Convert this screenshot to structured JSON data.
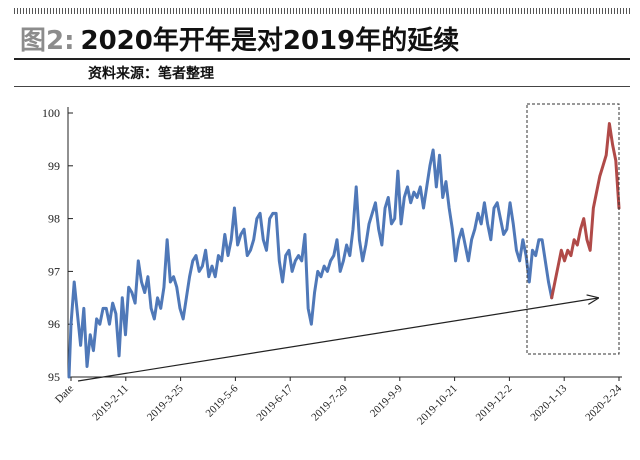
{
  "header": {
    "fig_label": "图2:",
    "title": "2020年开年是对2019年的延续",
    "source": "资料来源：笔者整理"
  },
  "chart_data": {
    "type": "line",
    "title": "",
    "xlabel": "",
    "ylabel": "",
    "ylim": [
      95,
      100
    ],
    "y_ticks": [
      95,
      96,
      97,
      98,
      99,
      100
    ],
    "x_tick_labels": [
      "Date",
      "2019-2-11",
      "2019-3-25",
      "2019-5-6",
      "2019-6-17",
      "2019-7-29",
      "2019-9-9",
      "2019-10-21",
      "2019-12-2",
      "2020-1-13",
      "2020-2-24"
    ],
    "grid": false,
    "colors": {
      "series_2019": "#4f78b8",
      "series_2020": "#b04a48",
      "axis": "#222222"
    },
    "series": [
      {
        "values": [
          96.0,
          96.8,
          96.2,
          95.6,
          96.3,
          95.2,
          95.8,
          95.5,
          96.1,
          96.0,
          96.3,
          96.3,
          96.0,
          96.4,
          96.2,
          95.4,
          96.5,
          95.8,
          96.7,
          96.6,
          96.4,
          97.2,
          96.8,
          96.6,
          96.9,
          96.3,
          96.1,
          96.5,
          96.3,
          96.7,
          97.6,
          96.8,
          96.9,
          96.7,
          96.3,
          96.1,
          96.5,
          96.9,
          97.2,
          97.3,
          97.0,
          97.1,
          97.4,
          96.9,
          97.1,
          96.9,
          97.3,
          97.2,
          97.7,
          97.3,
          97.6,
          98.2,
          97.5,
          97.7,
          97.8,
          97.3,
          97.4,
          97.6,
          98.0,
          98.1,
          97.6,
          97.4,
          98.0,
          98.1,
          98.1,
          97.2,
          96.8,
          97.3,
          97.4,
          97.0,
          97.2,
          97.3,
          97.2,
          97.7,
          96.3,
          96.0,
          96.6,
          97.0,
          96.9,
          97.1,
          97.0,
          97.2,
          97.3,
          97.6,
          97.0,
          97.2,
          97.5,
          97.3,
          97.8,
          98.6,
          97.6,
          97.2,
          97.5,
          97.9,
          98.1,
          98.3,
          97.8,
          97.5,
          98.2,
          98.4,
          97.9,
          98.0,
          98.9,
          97.9,
          98.4,
          98.6,
          98.3,
          98.5,
          98.4,
          98.6,
          98.2,
          98.6,
          99.0,
          99.3,
          98.6,
          99.2,
          98.4,
          98.7,
          98.2,
          97.8,
          97.2,
          97.6,
          97.8,
          97.5,
          97.2,
          97.6,
          97.8,
          98.1,
          97.9,
          98.3,
          97.9,
          97.6,
          98.2,
          98.3,
          98.0,
          97.7,
          97.8,
          98.3,
          97.9,
          97.4,
          97.2,
          97.6,
          97.3,
          96.8,
          97.4,
          97.3,
          97.6,
          97.6,
          97.2,
          96.8,
          96.5
        ]
      },
      {
        "values": [
          96.5,
          96.8,
          97.1,
          97.4,
          97.2,
          97.4,
          97.3,
          97.6,
          97.5,
          97.8,
          98.0,
          97.6,
          97.4,
          98.2,
          98.5,
          98.8,
          99.0,
          99.2,
          99.8,
          99.4,
          99.1,
          98.2
        ]
      }
    ],
    "annotations": [
      {
        "type": "trend-arrow",
        "from": [
          "2019-01-02",
          94.9
        ],
        "to": [
          "2020-01-23",
          96.5
        ]
      },
      {
        "type": "dashed-box",
        "label": ""
      }
    ]
  }
}
